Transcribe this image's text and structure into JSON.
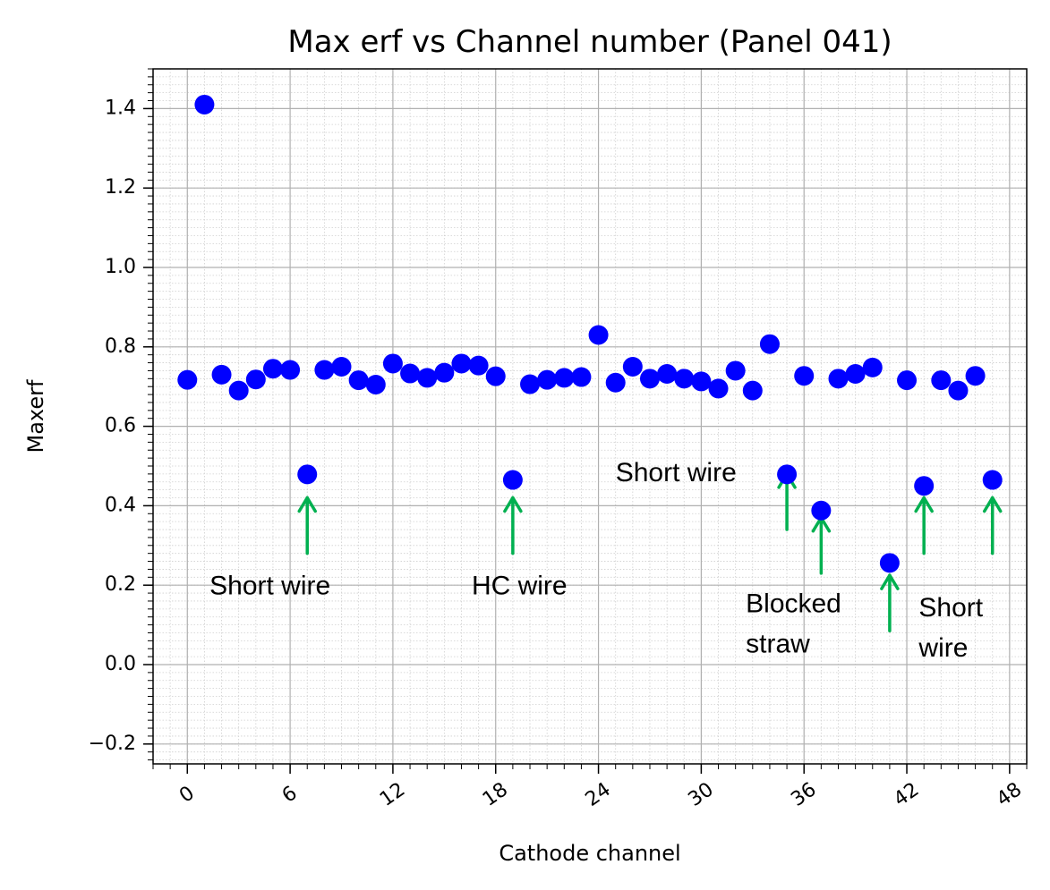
{
  "chart_data": {
    "type": "scatter",
    "title": "Max erf vs Channel number (Panel 041)",
    "xlabel": "Cathode channel",
    "ylabel": "Maxerf",
    "xlim": [
      -2,
      49
    ],
    "ylim": [
      -0.25,
      1.5
    ],
    "xticks": [
      0,
      6,
      12,
      18,
      24,
      30,
      36,
      42,
      48
    ],
    "xtick_labels": [
      "0",
      "6",
      "12",
      "18",
      "24",
      "30",
      "36",
      "42",
      "48"
    ],
    "yticks": [
      -0.2,
      0.0,
      0.2,
      0.4,
      0.6,
      0.8,
      1.0,
      1.2,
      1.4
    ],
    "ytick_labels": [
      "−0.2",
      "0.0",
      "0.2",
      "0.4",
      "0.6",
      "0.8",
      "1.0",
      "1.2",
      "1.4"
    ],
    "grid": true,
    "minor_grid": true,
    "marker_color": "#0000ff",
    "arrow_color": "#00b050",
    "points": [
      {
        "x": 0,
        "y": 0.717
      },
      {
        "x": 1,
        "y": 1.41
      },
      {
        "x": 2,
        "y": 0.73
      },
      {
        "x": 3,
        "y": 0.69
      },
      {
        "x": 4,
        "y": 0.718
      },
      {
        "x": 5,
        "y": 0.745
      },
      {
        "x": 6,
        "y": 0.742
      },
      {
        "x": 7,
        "y": 0.479
      },
      {
        "x": 8,
        "y": 0.742
      },
      {
        "x": 9,
        "y": 0.75
      },
      {
        "x": 10,
        "y": 0.716
      },
      {
        "x": 11,
        "y": 0.705
      },
      {
        "x": 12,
        "y": 0.758
      },
      {
        "x": 13,
        "y": 0.733
      },
      {
        "x": 14,
        "y": 0.722
      },
      {
        "x": 15,
        "y": 0.735
      },
      {
        "x": 16,
        "y": 0.758
      },
      {
        "x": 17,
        "y": 0.753
      },
      {
        "x": 18,
        "y": 0.726
      },
      {
        "x": 19,
        "y": 0.465
      },
      {
        "x": 20,
        "y": 0.706
      },
      {
        "x": 21,
        "y": 0.717
      },
      {
        "x": 22,
        "y": 0.722
      },
      {
        "x": 23,
        "y": 0.724
      },
      {
        "x": 24,
        "y": 0.83
      },
      {
        "x": 25,
        "y": 0.71
      },
      {
        "x": 26,
        "y": 0.75
      },
      {
        "x": 27,
        "y": 0.72
      },
      {
        "x": 28,
        "y": 0.732
      },
      {
        "x": 29,
        "y": 0.72
      },
      {
        "x": 30,
        "y": 0.713
      },
      {
        "x": 31,
        "y": 0.695
      },
      {
        "x": 32,
        "y": 0.74
      },
      {
        "x": 33,
        "y": 0.69
      },
      {
        "x": 34,
        "y": 0.807
      },
      {
        "x": 35,
        "y": 0.479
      },
      {
        "x": 36,
        "y": 0.727
      },
      {
        "x": 37,
        "y": 0.388
      },
      {
        "x": 38,
        "y": 0.72
      },
      {
        "x": 39,
        "y": 0.732
      },
      {
        "x": 40,
        "y": 0.748
      },
      {
        "x": 41,
        "y": 0.256
      },
      {
        "x": 42,
        "y": 0.716
      },
      {
        "x": 43,
        "y": 0.45
      },
      {
        "x": 44,
        "y": 0.716
      },
      {
        "x": 45,
        "y": 0.69
      },
      {
        "x": 46,
        "y": 0.727
      },
      {
        "x": 47,
        "y": 0.465
      }
    ],
    "arrows": [
      {
        "x": 7,
        "y_tail": 0.28,
        "y_head": 0.42
      },
      {
        "x": 19,
        "y_tail": 0.28,
        "y_head": 0.42
      },
      {
        "x": 35,
        "y_tail": 0.34,
        "y_head": 0.48
      },
      {
        "x": 37,
        "y_tail": 0.23,
        "y_head": 0.37
      },
      {
        "x": 41,
        "y_tail": 0.085,
        "y_head": 0.225
      },
      {
        "x": 43,
        "y_tail": 0.28,
        "y_head": 0.42
      },
      {
        "x": 47,
        "y_tail": 0.28,
        "y_head": 0.42
      }
    ],
    "annotations": [
      {
        "lines": [
          "Short wire"
        ],
        "x": 1.3,
        "y": 0.2
      },
      {
        "lines": [
          "HC wire"
        ],
        "x": 16.6,
        "y": 0.2
      },
      {
        "lines": [
          "Short wire"
        ],
        "x": 25.0,
        "y": 0.485
      },
      {
        "lines": [
          "Blocked",
          "straw"
        ],
        "x": 32.6,
        "y": 0.155
      },
      {
        "lines": [
          "Short",
          "wire"
        ],
        "x": 42.7,
        "y": 0.145
      }
    ]
  }
}
